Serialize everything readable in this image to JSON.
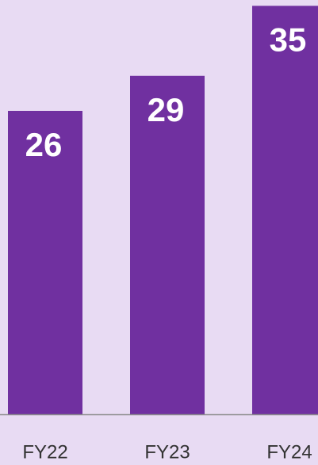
{
  "chart_data": {
    "type": "bar",
    "categories": [
      "FY22",
      "FY23",
      "FY24"
    ],
    "values": [
      26,
      29,
      35
    ],
    "color": "#7030a0",
    "ylim": [
      0,
      35.5
    ]
  }
}
